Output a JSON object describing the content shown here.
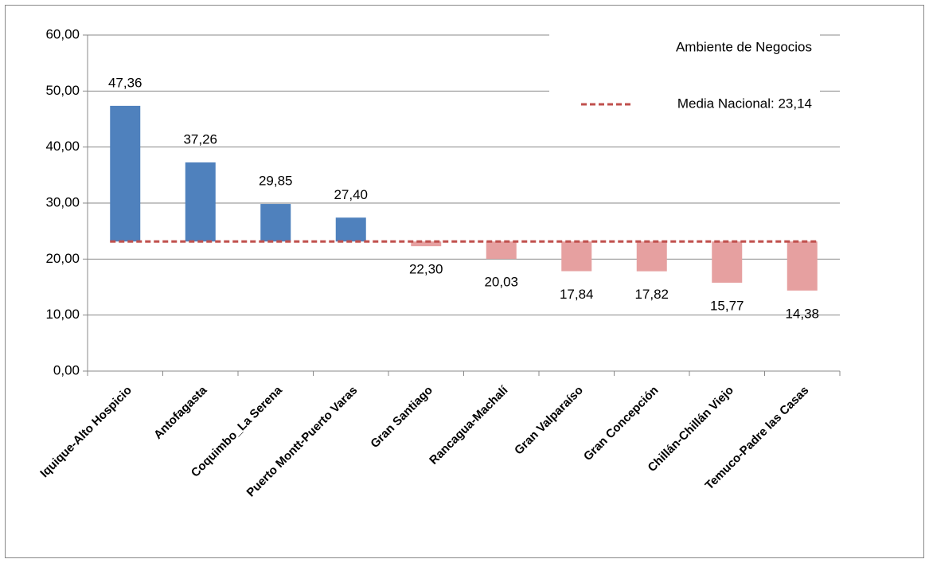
{
  "chart_data": {
    "type": "bar",
    "categories": [
      "Iquique-Alto Hospicio",
      "Antofagasta",
      "Coquimbo_La Serena",
      "Puerto Montt-Puerto Varas",
      "Gran Santiago",
      "Rancagua-Machalí",
      "Gran Valparaíso",
      "Gran Concepción",
      "Chillán-Chillán Viejo",
      "Temuco-Padre las Casas"
    ],
    "series": [
      {
        "name": "Ambiente de Negocios",
        "color_above": "#4f81bd",
        "color_below": "#e6a0a0",
        "values": [
          47.36,
          37.26,
          29.85,
          27.4,
          22.3,
          20.03,
          17.84,
          17.82,
          15.77,
          14.38
        ],
        "value_labels": [
          "47,36",
          "37,26",
          "29,85",
          "27,40",
          "22,30",
          "20,03",
          "17,84",
          "17,82",
          "15,77",
          "14,38"
        ]
      }
    ],
    "reference_line": {
      "name": "Media Nacional: 23,14",
      "value": 23.14,
      "color": "#c0504d"
    },
    "ylim": [
      0,
      60
    ],
    "yticks": [
      {
        "value": 0,
        "label": "0,00"
      },
      {
        "value": 10,
        "label": "10,00"
      },
      {
        "value": 20,
        "label": "20,00"
      },
      {
        "value": 30,
        "label": "30,00"
      },
      {
        "value": 40,
        "label": "40,00"
      },
      {
        "value": 50,
        "label": "50,00"
      },
      {
        "value": 60,
        "label": "60,00"
      }
    ],
    "grid": true
  }
}
